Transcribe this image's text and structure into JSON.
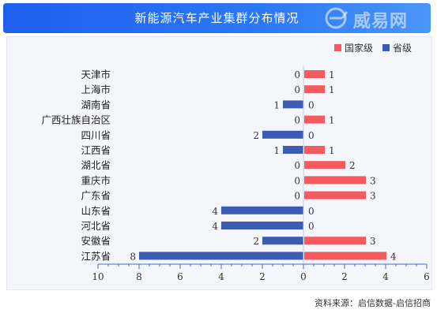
{
  "header": {
    "title": "新能源汽车产业集群分布情况",
    "logo_text": "威易网"
  },
  "footer": {
    "source": "资料来源：启信数据-启信招商"
  },
  "colors": {
    "national": "#f55a5f",
    "provincial": "#3c5bb3",
    "banner": "#1f5ff0"
  },
  "chart_data": {
    "type": "bar",
    "orientation": "horizontal-diverging",
    "categories": [
      "天津市",
      "上海市",
      "湖南省",
      "广西壮族自治区",
      "四川省",
      "江西省",
      "湖北省",
      "重庆市",
      "广东省",
      "山东省",
      "河北省",
      "安徽省",
      "江苏省"
    ],
    "series": [
      {
        "name": "国家级",
        "values": [
          1,
          1,
          0,
          1,
          0,
          1,
          2,
          3,
          3,
          0,
          0,
          3,
          4
        ]
      },
      {
        "name": "省级",
        "values": [
          0,
          0,
          1,
          0,
          2,
          1,
          0,
          0,
          0,
          4,
          4,
          2,
          8
        ]
      }
    ],
    "xlim": [
      -10,
      6
    ],
    "x_ticks": [
      -10,
      -8,
      -6,
      -4,
      -2,
      0,
      2,
      4,
      6
    ],
    "x_tick_labels": [
      "10",
      "8",
      "6",
      "4",
      "2",
      "0",
      "2",
      "4",
      "6"
    ],
    "legend": "top-right",
    "data_labels": true
  }
}
